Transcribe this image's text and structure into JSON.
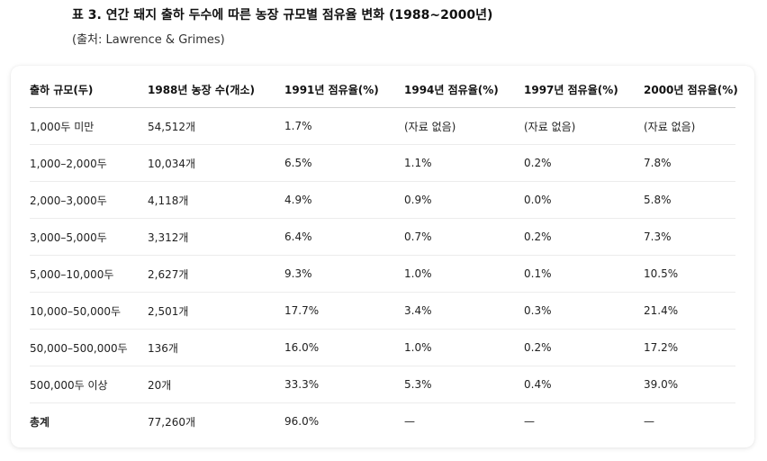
{
  "heading": {
    "title": "표 3. 연간 돼지 출하 두수에 따른 농장 규모별 점유율 변화 (1988~2000년)",
    "source": "(출처: Lawrence & Grimes)"
  },
  "table": {
    "headers": [
      "출하 규모(두)",
      "1988년 농장 수(개소)",
      "1991년 점유율(%)",
      "1994년 점유율(%)",
      "1997년 점유율(%)",
      "2000년 점유율(%)"
    ],
    "rows": [
      [
        "1,000두 미만",
        "54,512개",
        "1.7%",
        "(자료 없음)",
        "(자료 없음)",
        "(자료 없음)"
      ],
      [
        "1,000–2,000두",
        "10,034개",
        "6.5%",
        "1.1%",
        "0.2%",
        "7.8%"
      ],
      [
        "2,000–3,000두",
        "4,118개",
        "4.9%",
        "0.9%",
        "0.0%",
        "5.8%"
      ],
      [
        "3,000–5,000두",
        "3,312개",
        "6.4%",
        "0.7%",
        "0.2%",
        "7.3%"
      ],
      [
        "5,000–10,000두",
        "2,627개",
        "9.3%",
        "1.0%",
        "0.1%",
        "10.5%"
      ],
      [
        "10,000–50,000두",
        "2,501개",
        "17.7%",
        "3.4%",
        "0.3%",
        "21.4%"
      ],
      [
        "50,000–500,000두",
        "136개",
        "16.0%",
        "1.0%",
        "0.2%",
        "17.2%"
      ],
      [
        "500,000두 이상",
        "20개",
        "33.3%",
        "5.3%",
        "0.4%",
        "39.0%"
      ],
      [
        "총계",
        "77,260개",
        "96.0%",
        "—",
        "—",
        "—"
      ]
    ]
  }
}
